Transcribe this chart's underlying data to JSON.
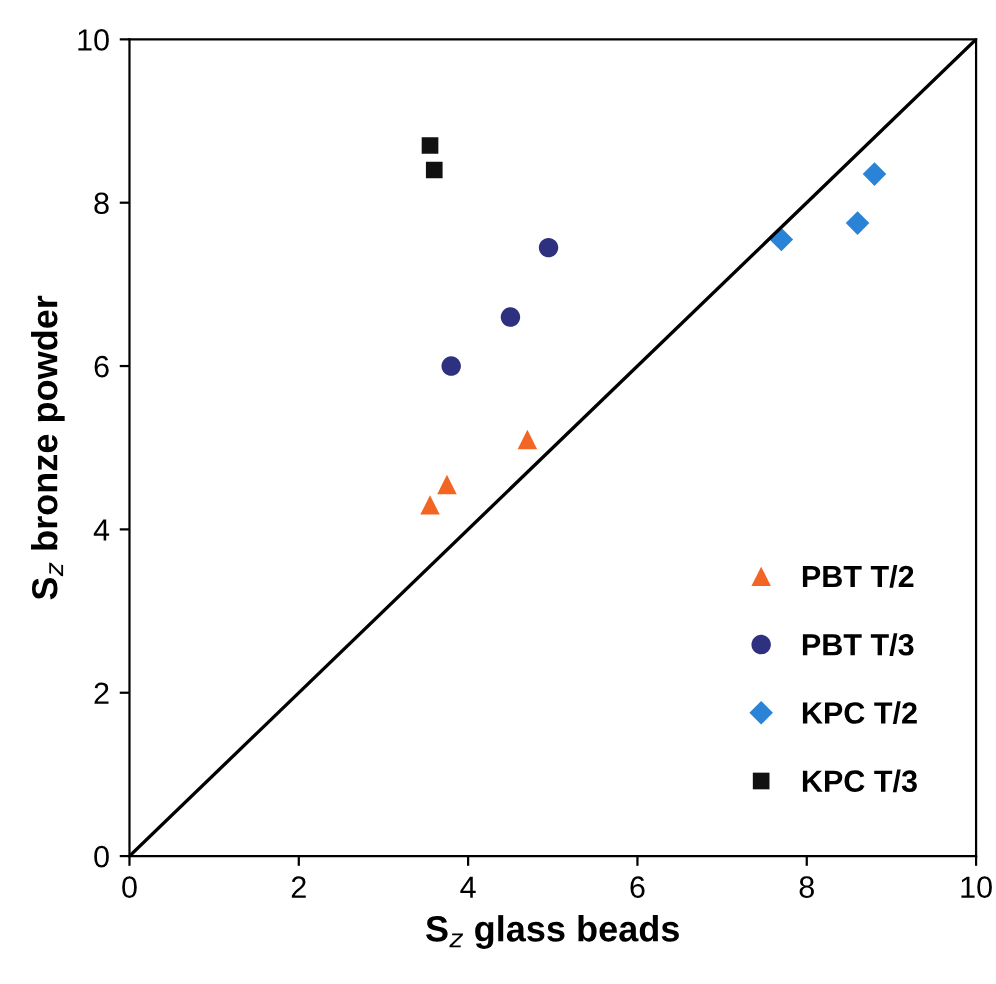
{
  "chart_data": {
    "type": "scatter",
    "xlabel": "S$_{z}$ glass beads",
    "ylabel": "S$_{z}$ bronze powder",
    "xlim": [
      0,
      10
    ],
    "ylim": [
      0,
      10
    ],
    "xticks": [
      0,
      2,
      4,
      6,
      8,
      10
    ],
    "yticks": [
      0,
      2,
      4,
      6,
      8,
      10
    ],
    "grid": false,
    "legend": "bottom right",
    "series": [
      {
        "name": "PBT T/2",
        "color": "#f26522",
        "marker": "triangle",
        "x": [
          3.55,
          3.75,
          4.7
        ],
        "values": [
          4.3,
          4.55,
          5.1
        ]
      },
      {
        "name": "PBT T/3",
        "color": "#2e3180",
        "marker": "circle",
        "x": [
          3.8,
          4.5,
          4.95
        ],
        "values": [
          6.0,
          6.6,
          7.45
        ]
      },
      {
        "name": "KPC T/2",
        "color": "#2a83d6",
        "marker": "diamond",
        "x": [
          7.7,
          8.6,
          8.8
        ],
        "values": [
          7.55,
          7.75,
          8.35
        ]
      },
      {
        "name": "KPC T/3",
        "color": "#111111",
        "marker": "square",
        "x": [
          3.55,
          3.6
        ],
        "values": [
          8.7,
          8.4
        ]
      },
      {
        "type": "line",
        "color": "#000000",
        "marker": "none",
        "x": [
          0,
          10
        ],
        "values": [
          0,
          10
        ]
      }
    ]
  }
}
